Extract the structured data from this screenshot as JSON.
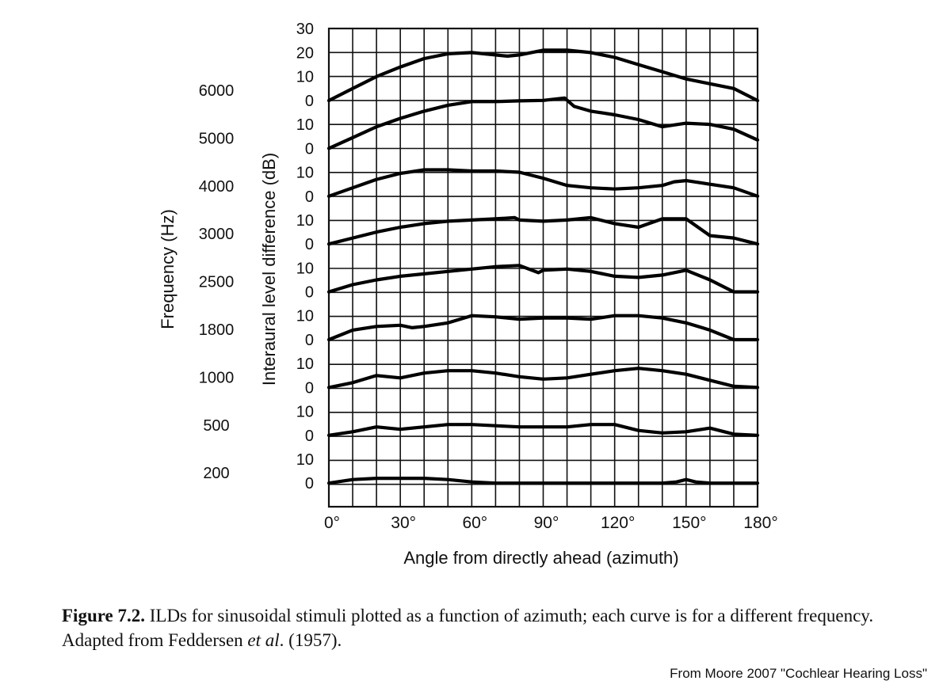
{
  "chart_data": {
    "type": "line",
    "xlabel": "Angle from directly ahead (azimuth)",
    "ylabel": "Interaural level difference (dB)",
    "row_label_title": "Frequency (Hz)",
    "x_ticks": [
      "0°",
      "30°",
      "60°",
      "90°",
      "120°",
      "150°",
      "180°"
    ],
    "x_tick_values": [
      0,
      30,
      60,
      90,
      120,
      150,
      180
    ],
    "xlim": [
      0,
      180
    ],
    "grid": true,
    "series": [
      {
        "name": "6000",
        "y_ticks": [
          "30",
          "20",
          "10",
          "0"
        ],
        "x": [
          0,
          10,
          20,
          30,
          40,
          50,
          60,
          70,
          75,
          80,
          90,
          100,
          110,
          120,
          130,
          140,
          150,
          160,
          170,
          180
        ],
        "y": [
          0,
          5,
          10,
          14,
          17.5,
          19.5,
          20,
          19,
          18.5,
          19,
          21,
          21,
          20,
          18,
          15,
          12,
          9,
          7,
          5,
          0
        ]
      },
      {
        "name": "5000",
        "y_ticks": [
          "10",
          "0"
        ],
        "x": [
          0,
          10,
          20,
          30,
          40,
          50,
          60,
          70,
          80,
          90,
          99,
          103,
          110,
          120,
          130,
          140,
          150,
          160,
          170,
          180
        ],
        "y": [
          0,
          4.5,
          9,
          12.5,
          15.5,
          18,
          19.5,
          19.5,
          19.8,
          20,
          21,
          17.5,
          15.5,
          14,
          12,
          9,
          10.5,
          10,
          8,
          3.5
        ]
      },
      {
        "name": "4000",
        "y_ticks": [
          "10",
          "0"
        ],
        "x": [
          0,
          10,
          20,
          30,
          40,
          50,
          60,
          70,
          80,
          90,
          100,
          110,
          120,
          130,
          140,
          145,
          150,
          160,
          170,
          180
        ],
        "y": [
          0,
          3.5,
          7,
          9.5,
          11,
          11,
          10.5,
          10.5,
          10,
          7.5,
          4.5,
          3.5,
          3,
          3.5,
          4.5,
          6,
          6.5,
          5,
          3.5,
          0
        ]
      },
      {
        "name": "3000",
        "y_ticks": [
          "10",
          "0"
        ],
        "x": [
          0,
          10,
          20,
          30,
          40,
          50,
          60,
          70,
          78,
          80,
          90,
          100,
          110,
          120,
          130,
          140,
          150,
          160,
          170,
          180
        ],
        "y": [
          0,
          2.5,
          5,
          7,
          8.5,
          9.5,
          10,
          10.5,
          11,
          10,
          9.5,
          10,
          11,
          8.5,
          7,
          10.5,
          10.5,
          3.5,
          2.5,
          0
        ]
      },
      {
        "name": "2500",
        "y_ticks": [
          "10",
          "0"
        ],
        "x": [
          0,
          10,
          20,
          30,
          40,
          50,
          60,
          70,
          80,
          88,
          90,
          100,
          110,
          120,
          130,
          140,
          150,
          160,
          170,
          180
        ],
        "y": [
          0,
          3,
          5,
          6.5,
          7.5,
          8.5,
          9.5,
          10.5,
          11,
          8,
          9,
          9.5,
          8.5,
          6.5,
          6,
          7,
          9,
          5,
          0,
          0
        ]
      },
      {
        "name": "1800",
        "y_ticks": [
          "10",
          "0"
        ],
        "x": [
          0,
          10,
          20,
          30,
          35,
          40,
          50,
          60,
          70,
          80,
          90,
          100,
          110,
          120,
          130,
          140,
          150,
          160,
          170,
          180
        ],
        "y": [
          0,
          4,
          5.5,
          6,
          5,
          5.5,
          7,
          10,
          9.5,
          8.5,
          9,
          9,
          8.5,
          10,
          10,
          9,
          7,
          4,
          0,
          0
        ]
      },
      {
        "name": "1000",
        "y_ticks": [
          "10",
          "0"
        ],
        "x": [
          0,
          10,
          20,
          30,
          40,
          50,
          60,
          70,
          80,
          90,
          100,
          110,
          120,
          130,
          140,
          150,
          160,
          170,
          180
        ],
        "y": [
          0,
          2,
          5,
          4,
          6,
          7,
          7,
          6,
          4.5,
          3.5,
          4,
          5.5,
          7,
          8,
          7,
          5.5,
          3,
          0.5,
          0
        ]
      },
      {
        "name": "500",
        "y_ticks": [
          "10",
          "0"
        ],
        "x": [
          0,
          10,
          20,
          30,
          40,
          50,
          60,
          70,
          80,
          90,
          100,
          110,
          120,
          130,
          140,
          150,
          160,
          170,
          180
        ],
        "y": [
          0,
          1.5,
          3.5,
          2.5,
          3.5,
          4.5,
          4.5,
          4,
          3.5,
          3.5,
          3.5,
          4.5,
          4.5,
          2,
          1,
          1.5,
          3,
          0.5,
          0
        ]
      },
      {
        "name": "200",
        "y_ticks": [
          "10",
          "0"
        ],
        "x": [
          0,
          10,
          20,
          30,
          40,
          50,
          60,
          70,
          80,
          90,
          100,
          110,
          120,
          130,
          140,
          146,
          150,
          154,
          160,
          170,
          180
        ],
        "y": [
          0,
          1.5,
          2,
          2,
          2,
          1.5,
          0.5,
          0,
          0,
          0,
          0,
          0,
          0,
          0,
          0,
          0.5,
          1.5,
          0.5,
          0,
          0,
          0
        ]
      }
    ]
  },
  "caption": {
    "label": "Figure 7.2.",
    "text_before_italic": " ILDs for sinusoidal stimuli plotted as a function of azimuth; each curve is for a different frequency. Adapted from Feddersen ",
    "italic": "et al",
    "text_after_italic": ". (1957)."
  },
  "credit": "From Moore 2007 \"Cochlear Hearing Loss\""
}
